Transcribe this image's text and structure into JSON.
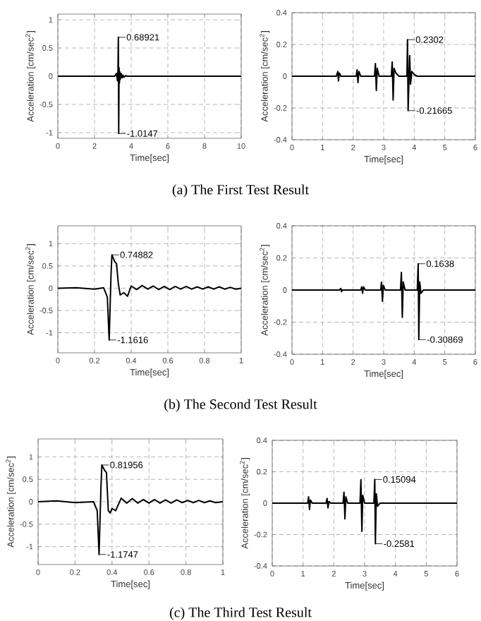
{
  "chart_data": [
    {
      "type": "line",
      "xlabel": "Time[sec]",
      "ylabel": "Acceleration [cm/sec$^{2}$]",
      "xlim": [
        0,
        10
      ],
      "ylim": [
        -1.1,
        1.1
      ],
      "xticks": [
        0,
        2,
        4,
        6,
        8,
        10
      ],
      "yticks": [
        -1,
        -0.5,
        0,
        0.5,
        1
      ],
      "grid": true,
      "color": "#000000",
      "line_style": "solid",
      "x": [
        0,
        3.1,
        3.2,
        3.25,
        3.28,
        3.3,
        3.32,
        3.34,
        3.36,
        3.38,
        3.4,
        3.45,
        3.5,
        3.55,
        3.6,
        3.7,
        3.8,
        10
      ],
      "values": [
        0,
        0,
        0.05,
        -0.08,
        0.1,
        0.68921,
        -1.0147,
        0.15,
        -0.12,
        0.08,
        -0.06,
        0.05,
        -0.03,
        0.02,
        -0.02,
        0.01,
        0,
        0
      ],
      "annotations": [
        {
          "text": "0.68921",
          "x": 3.3,
          "y": 0.68921
        },
        {
          "text": "-1.0147",
          "x": 3.32,
          "y": -1.0147
        },
        "(a) The First Test Result"
      ]
    },
    {
      "type": "line",
      "xlabel": "Time[sec]",
      "ylabel": "Acceleration [cm/sec$^{2}$]",
      "xlim": [
        0,
        6
      ],
      "ylim": [
        -0.4,
        0.4
      ],
      "xticks": [
        0,
        1,
        2,
        3,
        4,
        5,
        6
      ],
      "yticks": [
        -0.4,
        -0.2,
        0,
        0.2,
        0.4
      ],
      "grid": true,
      "color": "#000000",
      "line_style": "solid",
      "x": [
        0,
        1.45,
        1.5,
        1.52,
        1.55,
        1.6,
        2.1,
        2.13,
        2.16,
        2.19,
        2.25,
        2.7,
        2.73,
        2.76,
        2.79,
        2.85,
        3.25,
        3.28,
        3.31,
        3.34,
        3.4,
        3.5,
        3.76,
        3.78,
        3.8,
        3.85,
        3.88,
        3.92,
        4.0,
        4.1,
        6
      ],
      "values": [
        0,
        0,
        0.03,
        -0.03,
        0.02,
        0,
        0,
        0.04,
        -0.04,
        0.03,
        0,
        0,
        0.08,
        -0.09,
        0.05,
        0,
        0,
        0.09,
        -0.15,
        0.05,
        0.02,
        0,
        0,
        0.2302,
        -0.21665,
        0.13,
        -0.05,
        0.03,
        0.01,
        0,
        0
      ],
      "annotations": [
        {
          "text": "0.2302",
          "x": 3.78,
          "y": 0.2302
        },
        {
          "text": "-0.21665",
          "x": 3.8,
          "y": -0.21665
        }
      ]
    },
    {
      "type": "line",
      "xlabel": "Time[sec]",
      "ylabel": "Acceleration [cm/sec$^{2}$]",
      "xlim": [
        0,
        1
      ],
      "ylim": [
        -1.45,
        1.4
      ],
      "xticks": [
        0,
        0.2,
        0.4,
        0.6,
        0.8,
        1
      ],
      "yticks": [
        -1,
        -0.5,
        0,
        0.5,
        1
      ],
      "grid": true,
      "color": "#000000",
      "line_style": "solid",
      "x": [
        0,
        0.1,
        0.2,
        0.25,
        0.27,
        0.28,
        0.29,
        0.295,
        0.31,
        0.32,
        0.33,
        0.34,
        0.36,
        0.38,
        0.4,
        0.43,
        0.46,
        0.49,
        0.52,
        0.55,
        0.58,
        0.61,
        0.64,
        0.67,
        0.7,
        0.73,
        0.76,
        0.79,
        0.82,
        0.85,
        0.88,
        0.91,
        0.94,
        0.97,
        1
      ],
      "values": [
        0,
        0.01,
        -0.02,
        0.01,
        -0.2,
        -1.1616,
        0.3,
        0.74882,
        0.6,
        0.55,
        0.1,
        -0.15,
        -0.1,
        -0.18,
        0.05,
        -0.03,
        0.06,
        -0.02,
        0.05,
        -0.03,
        0.04,
        -0.03,
        0.04,
        -0.02,
        0.04,
        -0.02,
        0.03,
        -0.02,
        0.03,
        -0.02,
        0.03,
        -0.02,
        0.02,
        -0.02,
        0
      ],
      "annotations": [
        {
          "text": "0.74882",
          "x": 0.295,
          "y": 0.74882
        },
        {
          "text": "-1.1616",
          "x": 0.28,
          "y": -1.1616
        },
        "(b) The Second Test Result"
      ]
    },
    {
      "type": "line",
      "xlabel": "Time[sec]",
      "ylabel": "Acceleration [cm/sec$^{2}$]",
      "xlim": [
        0,
        6
      ],
      "ylim": [
        -0.4,
        0.4
      ],
      "xticks": [
        0,
        1,
        2,
        3,
        4,
        5,
        6
      ],
      "yticks": [
        -0.4,
        -0.2,
        0,
        0.2,
        0.4
      ],
      "grid": true,
      "color": "#000000",
      "line_style": "solid",
      "x": [
        0,
        1.55,
        1.6,
        1.62,
        1.65,
        2.25,
        2.28,
        2.31,
        2.34,
        2.4,
        2.9,
        2.93,
        2.96,
        2.99,
        3.05,
        3.55,
        3.58,
        3.61,
        3.64,
        3.7,
        4.1,
        4.13,
        4.15,
        4.18,
        4.22,
        4.3,
        6
      ],
      "values": [
        0,
        0,
        0.01,
        -0.01,
        0,
        0,
        0.02,
        -0.02,
        0.02,
        0,
        0,
        0.05,
        -0.07,
        0.03,
        0,
        0,
        0.11,
        -0.17,
        0.05,
        0,
        0,
        0.1638,
        -0.30869,
        0.05,
        -0.02,
        0,
        0
      ],
      "annotations": [
        {
          "text": "0.1638",
          "x": 4.13,
          "y": 0.1638
        },
        {
          "text": "-0.30869",
          "x": 4.15,
          "y": -0.30869
        }
      ]
    },
    {
      "type": "line",
      "xlabel": "Time[sec]",
      "ylabel": "Acceleration [cm/sec$^{2}$]",
      "xlim": [
        0,
        1
      ],
      "ylim": [
        -1.4,
        1.4
      ],
      "xticks": [
        0,
        0.2,
        0.4,
        0.6,
        0.8,
        1
      ],
      "yticks": [
        -1,
        -0.5,
        0,
        0.5,
        1
      ],
      "grid": true,
      "color": "#000000",
      "line_style": "solid",
      "x": [
        0,
        0.1,
        0.2,
        0.3,
        0.32,
        0.33,
        0.34,
        0.345,
        0.36,
        0.37,
        0.38,
        0.39,
        0.4,
        0.42,
        0.45,
        0.48,
        0.51,
        0.54,
        0.57,
        0.6,
        0.63,
        0.66,
        0.69,
        0.72,
        0.75,
        0.78,
        0.81,
        0.84,
        0.87,
        0.9,
        0.93,
        0.96,
        1
      ],
      "values": [
        0,
        0.02,
        -0.02,
        0,
        -0.2,
        -1.1747,
        0.3,
        0.81956,
        0.7,
        0.65,
        -0.2,
        -0.25,
        -0.15,
        -0.2,
        0.08,
        -0.03,
        0.07,
        -0.03,
        0.05,
        -0.03,
        0.05,
        -0.03,
        0.04,
        -0.03,
        0.04,
        -0.02,
        0.03,
        -0.02,
        0.03,
        -0.02,
        0.02,
        -0.02,
        0
      ],
      "annotations": [
        {
          "text": "0.81956",
          "x": 0.345,
          "y": 0.81956
        },
        {
          "text": "-1.1747",
          "x": 0.33,
          "y": -1.1747
        },
        "(c) The Third Test Result"
      ]
    },
    {
      "type": "line",
      "xlabel": "Time[sec]",
      "ylabel": "Acceleration [cm/sec$^{2}$]",
      "xlim": [
        0,
        6
      ],
      "ylim": [
        -0.4,
        0.4
      ],
      "xticks": [
        0,
        1,
        2,
        3,
        4,
        5,
        6
      ],
      "yticks": [
        -0.4,
        -0.2,
        0,
        0.2,
        0.4
      ],
      "grid": true,
      "color": "#000000",
      "line_style": "solid",
      "x": [
        0,
        1.15,
        1.18,
        1.21,
        1.24,
        1.3,
        1.75,
        1.78,
        1.81,
        1.84,
        1.9,
        2.3,
        2.33,
        2.36,
        2.39,
        2.45,
        2.85,
        2.88,
        2.91,
        2.94,
        3.0,
        3.3,
        3.33,
        3.35,
        3.38,
        3.42,
        3.5,
        6
      ],
      "values": [
        0,
        0,
        0.04,
        -0.04,
        0.02,
        0,
        0,
        0.03,
        -0.03,
        0.01,
        0,
        0,
        0.07,
        -0.1,
        0.04,
        0,
        0,
        0.15,
        -0.18,
        0.05,
        0,
        0,
        0.15094,
        -0.2581,
        0.06,
        -0.02,
        0,
        0
      ],
      "annotations": [
        {
          "text": "0.15094",
          "x": 3.33,
          "y": 0.15094
        },
        {
          "text": "-0.2581",
          "x": 3.35,
          "y": -0.2581
        }
      ]
    }
  ]
}
